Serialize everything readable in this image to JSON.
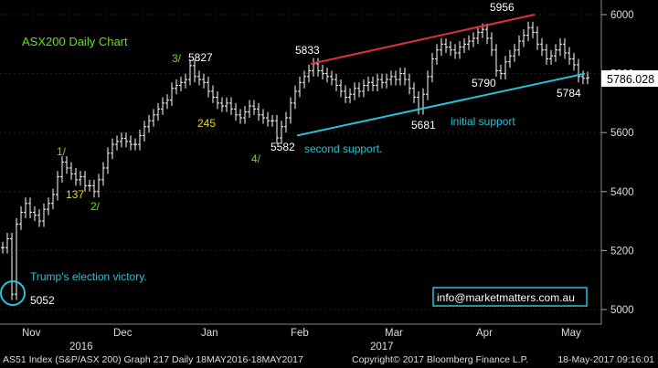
{
  "chart_data": {
    "type": "ohlc",
    "title": "ASX200 Daily Chart",
    "y_ticks": [
      5000,
      5200,
      5400,
      5600,
      5800,
      6000
    ],
    "ylim": [
      4960,
      6060
    ],
    "last_price": "5786.028",
    "months": [
      "Nov",
      "Dec",
      "Jan",
      "Feb",
      "Mar",
      "Apr",
      "May"
    ],
    "years": [
      "2016",
      "2017"
    ],
    "series": [
      {
        "points": [
          {
            "x": 3,
            "y": 5210
          },
          {
            "x": 8,
            "y": 5240
          },
          {
            "x": 13,
            "y": 5052
          },
          {
            "x": 18,
            "y": 5290
          },
          {
            "x": 23,
            "y": 5330
          },
          {
            "x": 28,
            "y": 5360
          },
          {
            "x": 33,
            "y": 5330
          },
          {
            "x": 38,
            "y": 5320
          },
          {
            "x": 43,
            "y": 5300
          },
          {
            "x": 48,
            "y": 5340
          },
          {
            "x": 53,
            "y": 5360
          },
          {
            "x": 58,
            "y": 5390
          },
          {
            "x": 63,
            "y": 5450
          },
          {
            "x": 68,
            "y": 5500
          },
          {
            "x": 73,
            "y": 5480
          },
          {
            "x": 78,
            "y": 5460
          },
          {
            "x": 83,
            "y": 5440
          },
          {
            "x": 88,
            "y": 5450
          },
          {
            "x": 93,
            "y": 5420
          },
          {
            "x": 98,
            "y": 5420
          },
          {
            "x": 103,
            "y": 5400
          },
          {
            "x": 108,
            "y": 5440
          },
          {
            "x": 113,
            "y": 5480
          },
          {
            "x": 118,
            "y": 5530
          },
          {
            "x": 123,
            "y": 5560
          },
          {
            "x": 128,
            "y": 5570
          },
          {
            "x": 133,
            "y": 5580
          },
          {
            "x": 138,
            "y": 5570
          },
          {
            "x": 143,
            "y": 5560
          },
          {
            "x": 148,
            "y": 5560
          },
          {
            "x": 153,
            "y": 5590
          },
          {
            "x": 158,
            "y": 5620
          },
          {
            "x": 163,
            "y": 5640
          },
          {
            "x": 168,
            "y": 5660
          },
          {
            "x": 173,
            "y": 5680
          },
          {
            "x": 178,
            "y": 5700
          },
          {
            "x": 183,
            "y": 5710
          },
          {
            "x": 188,
            "y": 5750
          },
          {
            "x": 193,
            "y": 5760
          },
          {
            "x": 198,
            "y": 5770
          },
          {
            "x": 203,
            "y": 5780
          },
          {
            "x": 208,
            "y": 5827
          },
          {
            "x": 213,
            "y": 5790
          },
          {
            "x": 218,
            "y": 5780
          },
          {
            "x": 223,
            "y": 5770
          },
          {
            "x": 228,
            "y": 5740
          },
          {
            "x": 233,
            "y": 5720
          },
          {
            "x": 238,
            "y": 5700
          },
          {
            "x": 243,
            "y": 5690
          },
          {
            "x": 248,
            "y": 5700
          },
          {
            "x": 253,
            "y": 5680
          },
          {
            "x": 258,
            "y": 5660
          },
          {
            "x": 263,
            "y": 5650
          },
          {
            "x": 268,
            "y": 5670
          },
          {
            "x": 273,
            "y": 5690
          },
          {
            "x": 278,
            "y": 5680
          },
          {
            "x": 283,
            "y": 5660
          },
          {
            "x": 288,
            "y": 5650
          },
          {
            "x": 293,
            "y": 5640
          },
          {
            "x": 298,
            "y": 5640
          },
          {
            "x": 303,
            "y": 5582
          },
          {
            "x": 308,
            "y": 5620
          },
          {
            "x": 313,
            "y": 5650
          },
          {
            "x": 318,
            "y": 5700
          },
          {
            "x": 323,
            "y": 5740
          },
          {
            "x": 328,
            "y": 5770
          },
          {
            "x": 333,
            "y": 5790
          },
          {
            "x": 338,
            "y": 5810
          },
          {
            "x": 343,
            "y": 5833
          },
          {
            "x": 348,
            "y": 5810
          },
          {
            "x": 353,
            "y": 5800
          },
          {
            "x": 358,
            "y": 5790
          },
          {
            "x": 363,
            "y": 5780
          },
          {
            "x": 368,
            "y": 5760
          },
          {
            "x": 373,
            "y": 5740
          },
          {
            "x": 378,
            "y": 5720
          },
          {
            "x": 383,
            "y": 5730
          },
          {
            "x": 388,
            "y": 5750
          },
          {
            "x": 393,
            "y": 5740
          },
          {
            "x": 398,
            "y": 5760
          },
          {
            "x": 403,
            "y": 5770
          },
          {
            "x": 408,
            "y": 5760
          },
          {
            "x": 413,
            "y": 5780
          },
          {
            "x": 418,
            "y": 5770
          },
          {
            "x": 423,
            "y": 5780
          },
          {
            "x": 428,
            "y": 5790
          },
          {
            "x": 433,
            "y": 5780
          },
          {
            "x": 438,
            "y": 5800
          },
          {
            "x": 443,
            "y": 5780
          },
          {
            "x": 448,
            "y": 5750
          },
          {
            "x": 453,
            "y": 5720
          },
          {
            "x": 458,
            "y": 5681
          },
          {
            "x": 463,
            "y": 5730
          },
          {
            "x": 468,
            "y": 5790
          },
          {
            "x": 473,
            "y": 5850
          },
          {
            "x": 478,
            "y": 5880
          },
          {
            "x": 483,
            "y": 5900
          },
          {
            "x": 488,
            "y": 5890
          },
          {
            "x": 493,
            "y": 5880
          },
          {
            "x": 498,
            "y": 5870
          },
          {
            "x": 503,
            "y": 5890
          },
          {
            "x": 508,
            "y": 5900
          },
          {
            "x": 513,
            "y": 5910
          },
          {
            "x": 518,
            "y": 5920
          },
          {
            "x": 523,
            "y": 5940
          },
          {
            "x": 528,
            "y": 5950
          },
          {
            "x": 533,
            "y": 5920
          },
          {
            "x": 538,
            "y": 5880
          },
          {
            "x": 543,
            "y": 5810
          },
          {
            "x": 548,
            "y": 5800
          },
          {
            "x": 553,
            "y": 5840
          },
          {
            "x": 558,
            "y": 5860
          },
          {
            "x": 563,
            "y": 5880
          },
          {
            "x": 568,
            "y": 5910
          },
          {
            "x": 573,
            "y": 5930
          },
          {
            "x": 578,
            "y": 5956
          },
          {
            "x": 583,
            "y": 5940
          },
          {
            "x": 588,
            "y": 5900
          },
          {
            "x": 593,
            "y": 5880
          },
          {
            "x": 598,
            "y": 5850
          },
          {
            "x": 603,
            "y": 5860
          },
          {
            "x": 608,
            "y": 5880
          },
          {
            "x": 613,
            "y": 5900
          },
          {
            "x": 618,
            "y": 5870
          },
          {
            "x": 623,
            "y": 5850
          },
          {
            "x": 628,
            "y": 5830
          },
          {
            "x": 633,
            "y": 5790
          },
          {
            "x": 638,
            "y": 5784
          },
          {
            "x": 643,
            "y": 5786
          }
        ]
      }
    ],
    "trendlines": [
      {
        "color": "#e0303c",
        "from": {
          "x": 340,
          "y": 5833
        },
        "to": {
          "x": 585,
          "y": 6000
        }
      },
      {
        "color": "#27c3d8",
        "from": {
          "x": 325,
          "y": 5590
        },
        "to": {
          "x": 640,
          "y": 5800
        }
      }
    ],
    "annotations": [
      {
        "text": "5827",
        "color": "#ffffff"
      },
      {
        "text": "3/",
        "color": "#66e01a"
      },
      {
        "text": "5833",
        "color": "#ffffff"
      },
      {
        "text": "5956",
        "color": "#ffffff"
      },
      {
        "text": "5790",
        "color": "#ffffff"
      },
      {
        "text": "5784",
        "color": "#ffffff"
      },
      {
        "text": "5681",
        "color": "#ffffff"
      },
      {
        "text": "initial support",
        "color": "#27c3d8"
      },
      {
        "text": "5582",
        "color": "#ffffff"
      },
      {
        "text": "second support.",
        "color": "#27c3d8"
      },
      {
        "text": "4/",
        "color": "#66e01a"
      },
      {
        "text": "245",
        "color": "#e6d81e"
      },
      {
        "text": "1/",
        "color": "#66e01a"
      },
      {
        "text": "137",
        "color": "#e6d81e"
      },
      {
        "text": "2/",
        "color": "#66e01a"
      },
      {
        "text": "Trump's election victory.",
        "color": "#27c3d8"
      },
      {
        "text": "5052",
        "color": "#ffffff"
      },
      {
        "text": "info@marketmatters.com.au",
        "color": "#ffffff"
      }
    ],
    "colors": {
      "background": "#000000",
      "bars": "#ffffff",
      "title": "#66e01a",
      "highlight": "#27c3d8"
    }
  },
  "footer": {
    "left": "AS51 Index (S&P/ASX 200) Graph 217  Daily 18MAY2016-18MAY2017",
    "center": "Copyright© 2017 Bloomberg Finance L.P.",
    "right": "18-May-2017 09:16:01"
  }
}
